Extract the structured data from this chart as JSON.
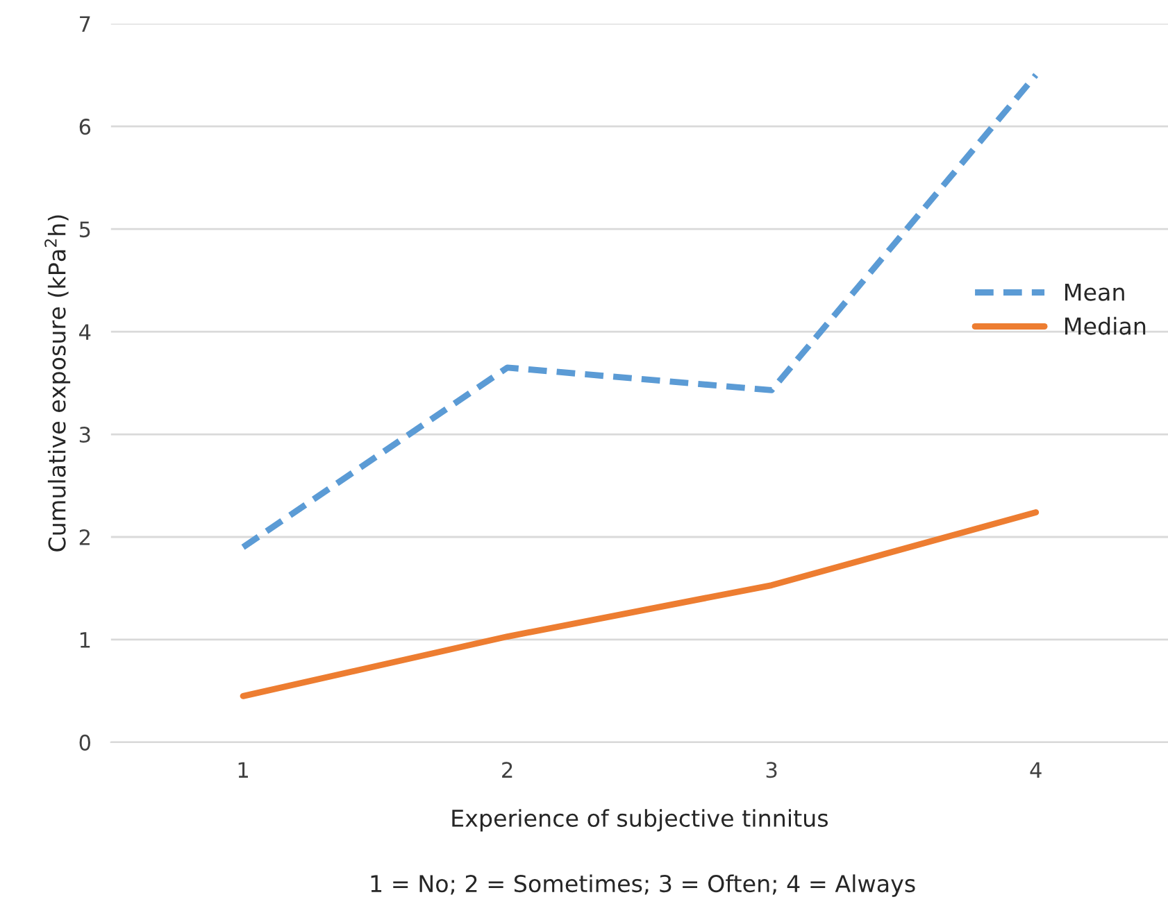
{
  "chart_data": {
    "type": "line",
    "xlabel": "Experience of subjective tinnitus",
    "ylabel": "Cumulative exposure (kPa$^{2}$h)",
    "categories": [
      "1",
      "2",
      "3",
      "4"
    ],
    "series": [
      {
        "name": "Mean",
        "color": "#5b9bd5",
        "line_style": "dashed",
        "values": [
          1.9,
          3.65,
          3.43,
          6.5
        ]
      },
      {
        "name": "Median",
        "color": "#ed7d31",
        "line_style": "solid",
        "values": [
          0.45,
          1.03,
          1.53,
          2.24
        ]
      }
    ],
    "ylim": [
      0,
      7
    ],
    "yticks": [
      0,
      1,
      2,
      3,
      4,
      5,
      6,
      7
    ],
    "grid": "y",
    "legend": "right",
    "marker": "none",
    "annotations": [
      "1 = No; 2 = Sometimes; 3 = Often; 4 = Always"
    ]
  }
}
